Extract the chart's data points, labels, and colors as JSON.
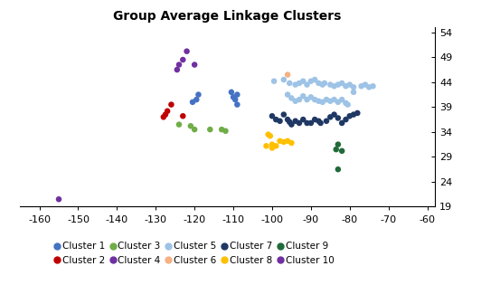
{
  "title": "Group Average Linkage Clusters",
  "xlim": [
    -165,
    -58
  ],
  "ylim": [
    19,
    55
  ],
  "xticks": [
    -160,
    -150,
    -140,
    -130,
    -120,
    -110,
    -100,
    -90,
    -80,
    -70,
    -60
  ],
  "yticks": [
    19,
    24,
    29,
    34,
    39,
    44,
    49,
    54
  ],
  "clusters": {
    "Cluster 1": {
      "color": "#4472C4",
      "points": [
        [
          -119,
          41.5
        ],
        [
          -119.5,
          40.5
        ],
        [
          -120.5,
          40.0
        ],
        [
          -110.5,
          42.0
        ],
        [
          -110,
          41.0
        ],
        [
          -109,
          41.5
        ],
        [
          -109.5,
          40.5
        ],
        [
          -109,
          39.5
        ]
      ]
    },
    "Cluster 2": {
      "color": "#C00000",
      "points": [
        [
          -126,
          39.5
        ],
        [
          -127,
          38.2
        ],
        [
          -127.5,
          37.5
        ],
        [
          -128,
          37.0
        ],
        [
          -123,
          37.2
        ]
      ]
    },
    "Cluster 3": {
      "color": "#70AD47",
      "points": [
        [
          -124,
          35.5
        ],
        [
          -121,
          35.2
        ],
        [
          -120,
          34.5
        ],
        [
          -116,
          34.5
        ],
        [
          -113,
          34.5
        ],
        [
          -112,
          34.2
        ]
      ]
    },
    "Cluster 4": {
      "color": "#7030A0",
      "points": [
        [
          -122,
          50.2
        ],
        [
          -123,
          48.5
        ],
        [
          -124,
          47.5
        ],
        [
          -124.5,
          46.5
        ],
        [
          -120,
          47.5
        ]
      ]
    },
    "Cluster 5": {
      "color": "#9DC3E6",
      "points": [
        [
          -99.5,
          44.2
        ],
        [
          -97,
          44.5
        ],
        [
          -95.5,
          43.8
        ],
        [
          -94,
          43.5
        ],
        [
          -93,
          43.8
        ],
        [
          -92,
          44.2
        ],
        [
          -91,
          43.5
        ],
        [
          -90,
          44.2
        ],
        [
          -89,
          44.5
        ],
        [
          -88,
          43.8
        ],
        [
          -87,
          43.5
        ],
        [
          -86.5,
          43.8
        ],
        [
          -85,
          43.5
        ],
        [
          -84,
          43.2
        ],
        [
          -83,
          43.5
        ],
        [
          -82,
          43.8
        ],
        [
          -81,
          43.2
        ],
        [
          -80,
          43.5
        ],
        [
          -79,
          43.0
        ],
        [
          -77,
          43.2
        ],
        [
          -96,
          41.5
        ],
        [
          -95,
          40.8
        ],
        [
          -94,
          40.2
        ],
        [
          -93,
          40.5
        ],
        [
          -92,
          41.2
        ],
        [
          -91,
          40.5
        ],
        [
          -90,
          41.0
        ],
        [
          -89,
          40.5
        ],
        [
          -88,
          40.2
        ],
        [
          -87,
          40.0
        ],
        [
          -86,
          40.5
        ],
        [
          -85,
          40.2
        ],
        [
          -84,
          40.5
        ],
        [
          -83,
          40.0
        ],
        [
          -82,
          40.5
        ],
        [
          -81,
          39.8
        ],
        [
          -80.5,
          39.5
        ],
        [
          -79,
          42.0
        ],
        [
          -75,
          43.0
        ],
        [
          -76,
          43.5
        ],
        [
          -74,
          43.2
        ]
      ]
    },
    "Cluster 6": {
      "color": "#F4B183",
      "points": [
        [
          -96,
          45.5
        ]
      ]
    },
    "Cluster 7": {
      "color": "#1F3864",
      "points": [
        [
          -100,
          37.2
        ],
        [
          -99,
          36.5
        ],
        [
          -98,
          36.2
        ],
        [
          -97,
          37.5
        ],
        [
          -96,
          36.5
        ],
        [
          -95.5,
          36.0
        ],
        [
          -95,
          35.5
        ],
        [
          -94,
          36.2
        ],
        [
          -93,
          35.8
        ],
        [
          -92,
          36.5
        ],
        [
          -91,
          35.8
        ],
        [
          -90,
          35.8
        ],
        [
          -89,
          36.5
        ],
        [
          -88,
          36.2
        ],
        [
          -87.5,
          35.8
        ],
        [
          -86,
          36.2
        ],
        [
          -85,
          37.0
        ],
        [
          -84,
          37.5
        ],
        [
          -83,
          36.8
        ],
        [
          -82,
          35.8
        ],
        [
          -81,
          36.5
        ],
        [
          -80,
          37.2
        ],
        [
          -79,
          37.5
        ],
        [
          -78,
          37.8
        ]
      ]
    },
    "Cluster 8": {
      "color": "#FFC000",
      "points": [
        [
          -101,
          33.5
        ],
        [
          -100.5,
          33.2
        ],
        [
          -100,
          31.5
        ],
        [
          -99,
          31.2
        ],
        [
          -98,
          32.2
        ],
        [
          -97,
          32.0
        ],
        [
          -96,
          32.2
        ],
        [
          -95,
          31.8
        ],
        [
          -101.5,
          31.2
        ],
        [
          -100,
          30.8
        ]
      ]
    },
    "Cluster 9": {
      "color": "#1F6B3A",
      "points": [
        [
          -83,
          31.5
        ],
        [
          -83.5,
          30.5
        ],
        [
          -82,
          30.2
        ],
        [
          -83,
          26.5
        ]
      ]
    },
    "Cluster 10": {
      "color": "#7030A0",
      "points": [
        [
          -155,
          20.5
        ]
      ]
    }
  },
  "legend_order": [
    "Cluster 1",
    "Cluster 2",
    "Cluster 3",
    "Cluster 4",
    "Cluster 5",
    "Cluster 6",
    "Cluster 7",
    "Cluster 8",
    "Cluster 9",
    "Cluster 10"
  ],
  "marker_size": 22,
  "title_fontsize": 10,
  "tick_fontsize": 8,
  "legend_fontsize": 7.5
}
